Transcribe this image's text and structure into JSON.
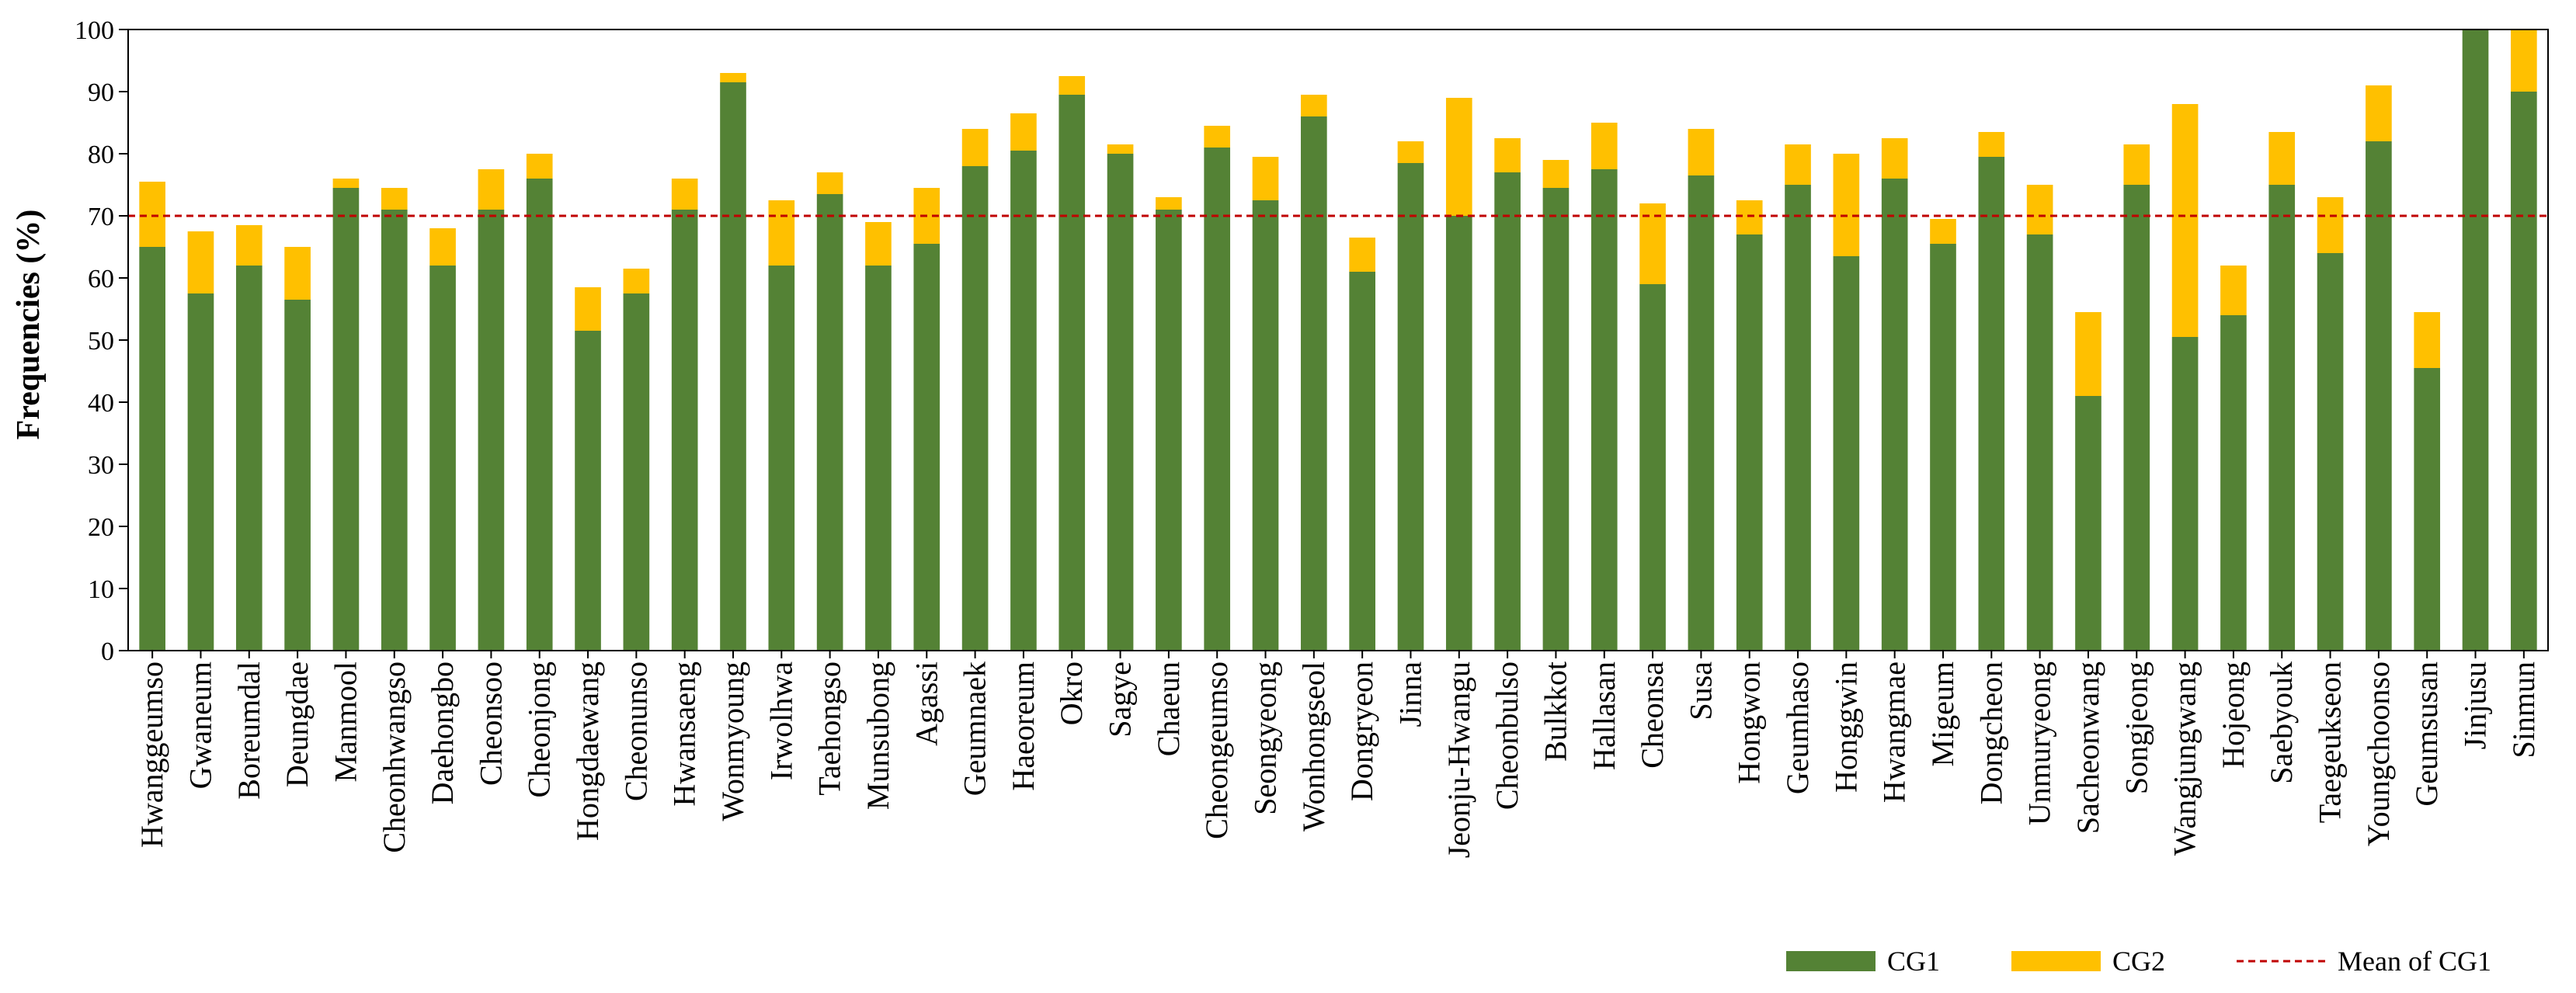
{
  "chart_data": {
    "type": "bar",
    "stacked": true,
    "title": "",
    "xlabel": "",
    "ylabel": "Frequencies (%)",
    "ylim": [
      0,
      100
    ],
    "yticks": [
      0,
      10,
      20,
      30,
      40,
      50,
      60,
      70,
      80,
      90,
      100
    ],
    "grid": false,
    "legend_position": "bottom-right",
    "categories": [
      "Hwanggeumso",
      "Gwaneum",
      "Boreumdal",
      "Deungdae",
      "Manmool",
      "Cheonhwangso",
      "Daehongbo",
      "Cheonsoo",
      "Cheonjong",
      "Hongdaewang",
      "Cheonunso",
      "Hwansaeng",
      "Wonmyoung",
      "Irwolhwa",
      "Taehongso",
      "Munsubong",
      "Agassi",
      "Geumnaek",
      "Haeoreum",
      "Okro",
      "Sagye",
      "Chaeun",
      "Cheongeumso",
      "Seongyeong",
      "Wonhongseol",
      "Dongryeon",
      "Jinna",
      "Jeonju-Hwangu",
      "Cheonbulso",
      "Bulkkot",
      "Hallasan",
      "Cheonsa",
      "Susa",
      "Hongwon",
      "Geumhaso",
      "Honggwin",
      "Hwangmae",
      "Migeum",
      "Dongcheon",
      "Unmuryeong",
      "Sacheonwang",
      "Songjeong",
      "Wangjungwang",
      "Hojeong",
      "Saebyouk",
      "Taegeukseon",
      "Youngchoonso",
      "Geumsusan",
      "Jinjusu",
      "Sinmun"
    ],
    "series": [
      {
        "name": "CG1",
        "color": "#548235",
        "values": [
          65,
          57.5,
          62,
          56.5,
          74.5,
          71,
          62,
          71,
          76,
          51.5,
          57.5,
          71,
          91.5,
          62,
          73.5,
          62,
          65.5,
          78,
          80.5,
          89.5,
          80,
          71,
          81,
          72.5,
          86,
          61,
          78.5,
          70,
          77,
          74.5,
          77.5,
          59,
          76.5,
          67,
          75,
          63.5,
          76,
          65.5,
          79.5,
          67,
          41,
          75,
          50.5,
          54,
          75,
          64,
          82,
          45.5,
          100,
          90
        ]
      },
      {
        "name": "CG2",
        "color": "#ffc000",
        "values": [
          10.5,
          10,
          6.5,
          8.5,
          1.5,
          3.5,
          6,
          6.5,
          4,
          7,
          4,
          5,
          1.5,
          10.5,
          3.5,
          7,
          9,
          6,
          6,
          3,
          1.5,
          2,
          3.5,
          7,
          3.5,
          5.5,
          3.5,
          19,
          5.5,
          4.5,
          7.5,
          13,
          7.5,
          5.5,
          6.5,
          16.5,
          6.5,
          4,
          4,
          8,
          13.5,
          6.5,
          37.5,
          8,
          8.5,
          9,
          9,
          9,
          0,
          10
        ]
      }
    ],
    "reference_line": {
      "name": "Mean of CG1",
      "value": 70,
      "color": "#c00000",
      "style": "dashed"
    }
  }
}
